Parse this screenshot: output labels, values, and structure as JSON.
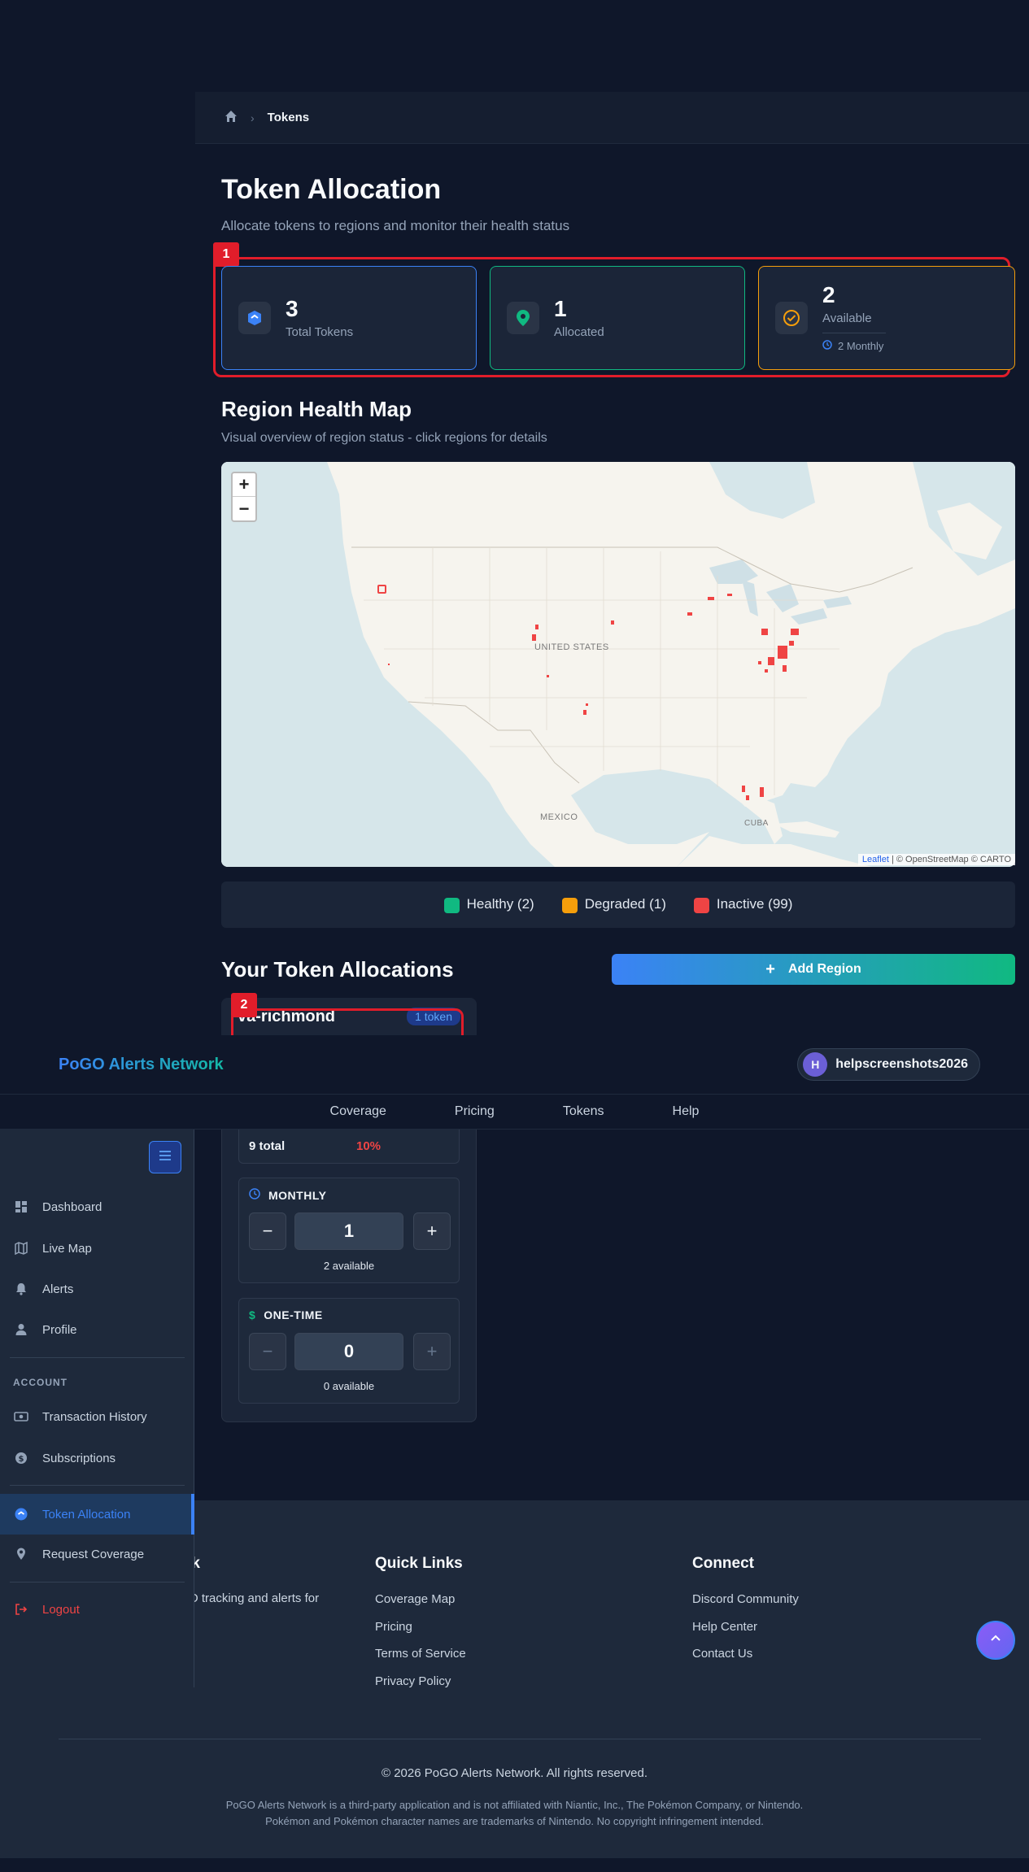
{
  "breadcrumb": {
    "home_icon": "home-icon",
    "current": "Tokens"
  },
  "page": {
    "title": "Token Allocation",
    "subtitle": "Allocate tokens to regions and monitor their health status"
  },
  "annotations": {
    "one": "1",
    "two": "2"
  },
  "stats": {
    "total": {
      "value": "3",
      "label": "Total Tokens",
      "color": "#3b82f6"
    },
    "allocated": {
      "value": "1",
      "label": "Allocated",
      "color": "#10b981"
    },
    "available": {
      "value": "2",
      "label": "Available",
      "sub": "2 Monthly",
      "color": "#f59e0b"
    }
  },
  "map_section": {
    "title": "Region Health Map",
    "subtitle": "Visual overview of region status - click regions for details",
    "zoom_in": "+",
    "zoom_out": "−",
    "labels": {
      "us": "UNITED STATES",
      "mexico": "MEXICO",
      "cuba": "CUBA"
    },
    "attribution_link": "Leaflet",
    "attribution_rest": " | © OpenStreetMap © CARTO"
  },
  "legend": {
    "healthy": {
      "label": "Healthy (2)",
      "color": "#10b981"
    },
    "degraded": {
      "label": "Degraded (1)",
      "color": "#f59e0b"
    },
    "inactive": {
      "label": "Inactive (99)",
      "color": "#ef4444"
    }
  },
  "allocations": {
    "title": "Your Token Allocations",
    "add_button": "Add Region",
    "card": {
      "name": "va-richmond",
      "badge": "1 token"
    },
    "summary": {
      "total": "9 total",
      "percent": "10%"
    },
    "monthly": {
      "title": "MONTHLY",
      "minus": "−",
      "value": "1",
      "plus": "+",
      "available": "2 available"
    },
    "onetime": {
      "title": "ONE-TIME",
      "minus": "−",
      "value": "0",
      "plus": "+",
      "available": "0 available"
    }
  },
  "topbar": {
    "brand": "PoGO Alerts Network",
    "avatar_letter": "H",
    "username": "helpscreenshots2026"
  },
  "nav": [
    "Coverage",
    "Pricing",
    "Tokens",
    "Help"
  ],
  "sidebar": {
    "items": [
      "Dashboard",
      "Live Map",
      "Alerts",
      "Profile"
    ],
    "section": "ACCOUNT",
    "account_items": [
      "Transaction History",
      "Subscriptions"
    ],
    "active": "Token Allocation",
    "request": "Request Coverage",
    "logout": "Logout"
  },
  "footer": {
    "brand_fragment": "rk",
    "brand_desc_fragment": "O tracking and alerts for",
    "quick_links_title": "Quick Links",
    "quick_links": [
      "Coverage Map",
      "Pricing",
      "Terms of Service",
      "Privacy Policy"
    ],
    "connect_title": "Connect",
    "connect_links": [
      "Discord Community",
      "Help Center",
      "Contact Us"
    ],
    "copyright": "© 2026 PoGO Alerts Network. All rights reserved.",
    "disclaimer1": "PoGO Alerts Network is a third-party application and is not affiliated with Niantic, Inc., The Pokémon Company, or Nintendo.",
    "disclaimer2": "Pokémon and Pokémon character names are trademarks of Nintendo. No copyright infringement intended."
  }
}
